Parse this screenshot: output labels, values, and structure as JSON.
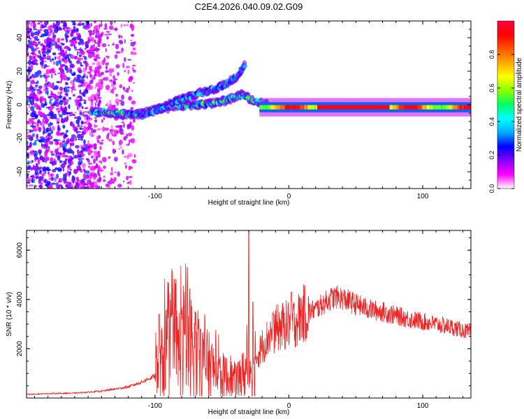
{
  "title": "C2E4.2026.040.09.02.G09",
  "chart_data": [
    {
      "type": "heatmap",
      "name": "spectrogram",
      "xlabel": "Height of straight line (km)",
      "ylabel": "Frequency (Hz)",
      "xlim": [
        -196,
        136
      ],
      "ylim": [
        -50,
        50
      ],
      "xticks": [
        -100,
        0,
        100
      ],
      "yticks": [
        -40,
        -20,
        0,
        20,
        40
      ],
      "xtick_labels": [
        "-100",
        "0",
        "100"
      ],
      "ytick_labels": [
        "-40",
        "-20",
        "0",
        "20",
        "40"
      ],
      "colorbar": {
        "label": "Normalized spectral amplitude",
        "range": [
          0,
          1
        ],
        "ticks": [
          0.0,
          0.2,
          0.4,
          0.6,
          0.8
        ],
        "tick_labels": [
          "0.0",
          "0.2",
          "0.4",
          "0.6",
          "0.8"
        ],
        "colors": [
          "#ffffff",
          "#ff00ff",
          "#8800ff",
          "#0000ff",
          "#00aaff",
          "#00ffff",
          "#00ff66",
          "#88ff00",
          "#ffff00",
          "#ffaa00",
          "#ff5500",
          "#ff0000",
          "#ff0044"
        ]
      },
      "features": [
        {
          "label": "scattered noise",
          "x_range": [
            -196,
            -115
          ],
          "freq_range": [
            -50,
            50
          ],
          "amplitude": 0.1
        },
        {
          "label": "lower branch",
          "points": [
            [
              -148,
              -4
            ],
            [
              -130,
              -5
            ],
            [
              -115,
              -6
            ],
            [
              -100,
              -3
            ],
            [
              -85,
              -1
            ],
            [
              -70,
              0
            ],
            [
              -55,
              1
            ],
            [
              -45,
              3
            ],
            [
              -35,
              6
            ],
            [
              -25,
              2
            ],
            [
              -15,
              0
            ]
          ],
          "amplitude": 0.45
        },
        {
          "label": "upper branch",
          "points": [
            [
              -110,
              -6
            ],
            [
              -95,
              -2
            ],
            [
              -85,
              2
            ],
            [
              -75,
              5
            ],
            [
              -62,
              8
            ],
            [
              -50,
              11
            ],
            [
              -40,
              16
            ],
            [
              -33,
              24
            ]
          ],
          "amplitude": 0.35
        },
        {
          "label": "steady tone",
          "x_range": [
            -22,
            136
          ],
          "freq": -1.5,
          "amplitude": 0.9
        }
      ]
    },
    {
      "type": "line",
      "name": "snr",
      "xlabel": "Height of straight line (km)",
      "ylabel": "SNR (10 * v/v)",
      "xlim": [
        -196,
        136
      ],
      "ylim": [
        0,
        6800
      ],
      "xticks": [
        -100,
        0,
        100
      ],
      "yticks": [
        2000,
        4000,
        6000
      ],
      "xtick_labels": [
        "-100",
        "0",
        "100"
      ],
      "ytick_labels": [
        "2000",
        "4000",
        "6000"
      ],
      "color": "#ee2222",
      "series": [
        {
          "name": "SNR",
          "x": [
            -196,
            -180,
            -160,
            -140,
            -120,
            -110,
            -100,
            -95,
            -90,
            -85,
            -80,
            -75,
            -70,
            -65,
            -60,
            -55,
            -50,
            -45,
            -40,
            -35,
            -30,
            -25,
            -20,
            -15,
            -10,
            -5,
            0,
            5,
            10,
            15,
            20,
            25,
            30,
            35,
            40,
            50,
            60,
            70,
            80,
            90,
            100,
            110,
            120,
            130,
            136
          ],
          "values": [
            150,
            180,
            200,
            280,
            450,
            650,
            900,
            1400,
            2200,
            1800,
            2000,
            2400,
            1600,
            1500,
            1300,
            1100,
            900,
            800,
            700,
            900,
            1200,
            1600,
            2100,
            2500,
            2800,
            2900,
            3000,
            3100,
            3400,
            3500,
            3600,
            3800,
            4000,
            4100,
            4050,
            3800,
            3600,
            3500,
            3350,
            3200,
            3100,
            3000,
            2900,
            2750,
            2650
          ],
          "peaks": [
            [
              -97,
              3400
            ],
            [
              -88,
              3300
            ],
            [
              -80,
              3200
            ],
            [
              -76,
              5300
            ],
            [
              -70,
              3500
            ],
            [
              -66,
              2800
            ],
            [
              -30,
              6800
            ],
            [
              -27,
              3900
            ],
            [
              -12,
              3400
            ],
            [
              2,
              4300
            ],
            [
              8,
              4100
            ]
          ]
        }
      ]
    }
  ]
}
